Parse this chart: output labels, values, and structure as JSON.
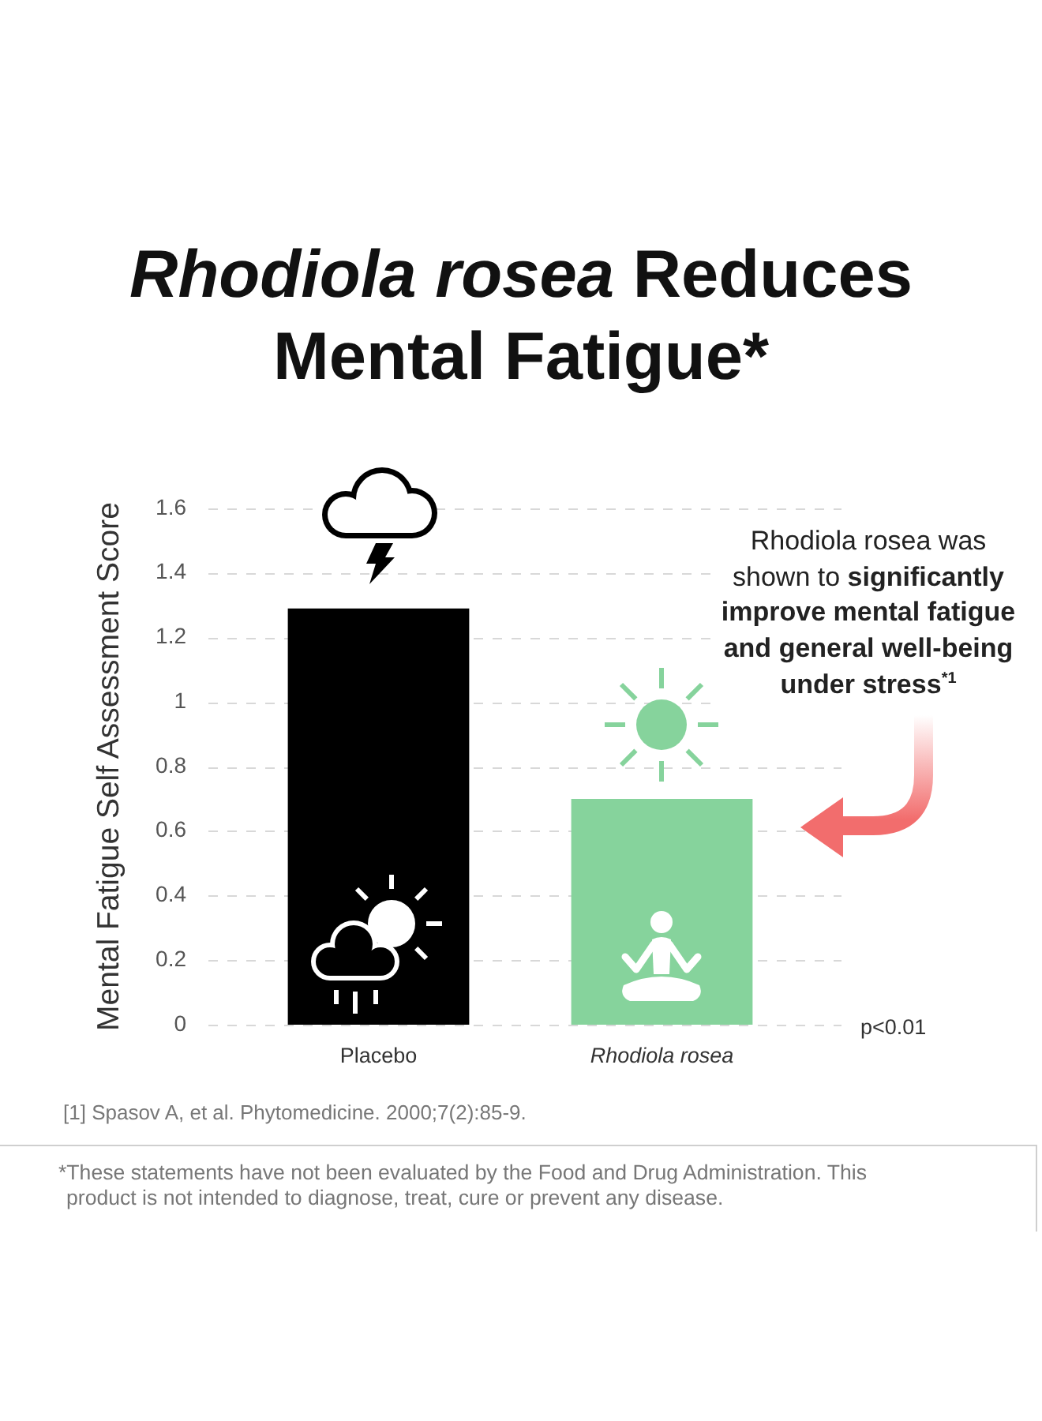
{
  "chart_data": {
    "type": "bar",
    "title": "Rhodiola rosea Reduces Mental Fatigue*",
    "ylabel": "Mental Fatigue Self Assessment Score",
    "categories": [
      "Placebo",
      "Rhodiola rosea"
    ],
    "values": [
      1.29,
      0.7
    ],
    "colors": [
      "#000000",
      "#86d39c"
    ],
    "ylim": [
      0,
      1.6
    ],
    "yticks": [
      0,
      0.2,
      0.4,
      0.6,
      0.8,
      1,
      1.2,
      1.4,
      1.6
    ],
    "grid": "y",
    "annotations": [
      "Rhodiola rosea was shown to significantly improve mental fatigue and general well-being under stress$^{*1}$",
      "p<0.01",
      "[1] Spasov A, et al. Phytomedicine. 2000;7(2):85-9.",
      "*These statements have not been evaluated by the Food and Drug Administration. This product is not intended to diagnose, treat, cure or prevent any disease."
    ]
  }
}
